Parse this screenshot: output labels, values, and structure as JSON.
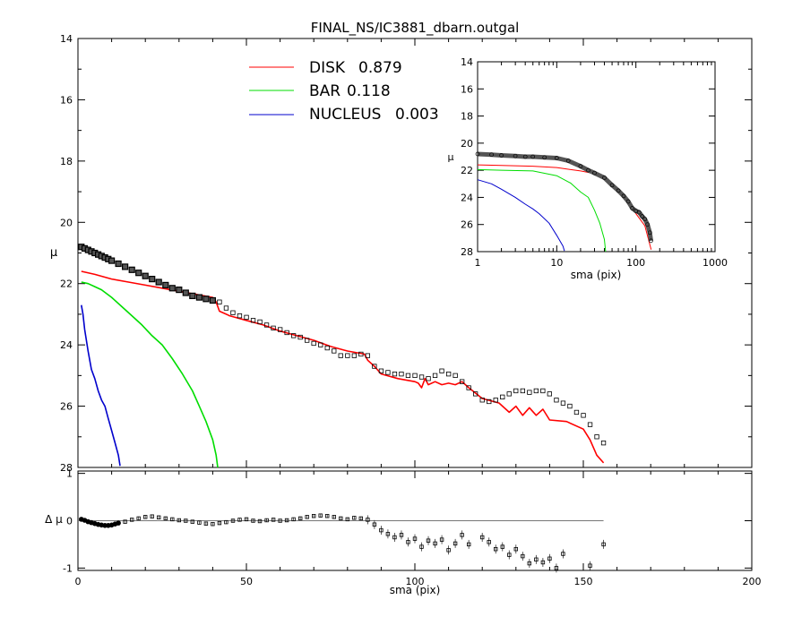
{
  "title": "FINAL_NS/IC3881_dbarn.outgal",
  "colors": {
    "disk": "#ff0000",
    "bar": "#00dd00",
    "nucleus": "#0000cc",
    "data": "#000000",
    "zero": "#777777"
  },
  "legend": [
    {
      "key": "disk",
      "label": "DISK",
      "value": "0.879"
    },
    {
      "key": "bar",
      "label": "BAR",
      "value": "0.118"
    },
    {
      "key": "nucleus",
      "label": "NUCLEUS",
      "value": "0.003"
    }
  ],
  "chart_data": [
    {
      "type": "line",
      "panel": "main",
      "xlim": [
        0,
        200
      ],
      "ylim": [
        28,
        14
      ],
      "ylabel": "μ",
      "y_ticks": [
        "14",
        "16",
        "18",
        "20",
        "22",
        "24",
        "26",
        "28"
      ],
      "y_tick_values": [
        14,
        16,
        18,
        20,
        22,
        24,
        26,
        28
      ],
      "observed": {
        "x": [
          1,
          2,
          3,
          4,
          5,
          6,
          7,
          8,
          9,
          10,
          12,
          14,
          16,
          18,
          20,
          22,
          24,
          26,
          28,
          30,
          32,
          34,
          36,
          38,
          40,
          42,
          44,
          46,
          48,
          50,
          52,
          54,
          56,
          58,
          60,
          62,
          64,
          66,
          68,
          70,
          72,
          74,
          76,
          78,
          80,
          82,
          84,
          86,
          88,
          90,
          92,
          94,
          96,
          98,
          100,
          102,
          104,
          106,
          108,
          110,
          112,
          114,
          116,
          118,
          120,
          122,
          124,
          126,
          128,
          130,
          132,
          134,
          136,
          138,
          140,
          142,
          144,
          146,
          148,
          150,
          152,
          154,
          156
        ],
        "y": [
          20.8,
          20.85,
          20.9,
          20.95,
          21.0,
          21.05,
          21.1,
          21.15,
          21.2,
          21.25,
          21.35,
          21.45,
          21.55,
          21.65,
          21.75,
          21.85,
          21.95,
          22.05,
          22.15,
          22.2,
          22.3,
          22.4,
          22.45,
          22.5,
          22.55,
          22.6,
          22.8,
          22.95,
          23.05,
          23.1,
          23.2,
          23.25,
          23.35,
          23.45,
          23.5,
          23.6,
          23.7,
          23.75,
          23.85,
          23.95,
          24.0,
          24.1,
          24.2,
          24.35,
          24.35,
          24.35,
          24.3,
          24.35,
          24.7,
          24.85,
          24.9,
          24.95,
          24.95,
          25.0,
          25.0,
          25.05,
          25.1,
          25.0,
          24.85,
          24.95,
          25.0,
          25.2,
          25.4,
          25.6,
          25.8,
          25.85,
          25.8,
          25.7,
          25.6,
          25.5,
          25.5,
          25.55,
          25.5,
          25.5,
          25.6,
          25.8,
          25.9,
          26.0,
          26.2,
          26.3,
          26.6,
          27.0,
          27.2
        ]
      },
      "series": [
        {
          "key": "disk",
          "x": [
            1,
            5,
            10,
            15,
            20,
            25,
            30,
            35,
            40,
            41,
            42,
            45,
            50,
            55,
            60,
            65,
            70,
            75,
            80,
            85,
            86,
            88,
            90,
            95,
            100,
            101,
            102,
            103,
            104,
            106,
            108,
            110,
            112,
            114,
            116,
            120,
            125,
            128,
            130,
            132,
            134,
            136,
            138,
            140,
            145,
            150,
            152,
            154,
            156
          ],
          "y": [
            21.6,
            21.7,
            21.85,
            21.95,
            22.05,
            22.15,
            22.25,
            22.35,
            22.45,
            22.6,
            22.9,
            23.05,
            23.2,
            23.35,
            23.55,
            23.7,
            23.85,
            24.05,
            24.2,
            24.3,
            24.5,
            24.7,
            24.95,
            25.1,
            25.2,
            25.25,
            25.4,
            25.1,
            25.3,
            25.2,
            25.3,
            25.25,
            25.3,
            25.2,
            25.4,
            25.75,
            25.9,
            26.2,
            26.0,
            26.3,
            26.05,
            26.3,
            26.1,
            26.45,
            26.5,
            26.75,
            27.1,
            27.6,
            27.85
          ]
        },
        {
          "key": "bar",
          "x": [
            1,
            3,
            5,
            7,
            10,
            13,
            16,
            19,
            22,
            25,
            28,
            31,
            34,
            36,
            38,
            40,
            41,
            41.5
          ],
          "y": [
            21.95,
            22.0,
            22.1,
            22.2,
            22.45,
            22.75,
            23.05,
            23.35,
            23.7,
            24.0,
            24.45,
            24.95,
            25.5,
            26.0,
            26.5,
            27.1,
            27.6,
            28.0
          ]
        },
        {
          "key": "nucleus",
          "x": [
            1,
            1.5,
            2,
            3,
            4,
            5,
            6,
            7,
            8,
            9,
            10,
            11,
            12,
            12.5
          ],
          "y": [
            22.7,
            23.0,
            23.5,
            24.2,
            24.8,
            25.1,
            25.5,
            25.8,
            26.0,
            26.4,
            26.8,
            27.2,
            27.6,
            27.95
          ]
        }
      ]
    },
    {
      "type": "scatter",
      "panel": "residual",
      "xlim": [
        0,
        200
      ],
      "ylim": [
        -1.05,
        1.05
      ],
      "xlabel": "sma (pix)",
      "ylabel": "Δ μ",
      "x_ticks": [
        "0",
        "50",
        "100",
        "150",
        "200"
      ],
      "x_tick_values": [
        0,
        50,
        100,
        150,
        200
      ],
      "y_ticks": [
        "1",
        "0",
        "-1"
      ],
      "y_tick_values": [
        1,
        0,
        -1
      ],
      "zero_line": {
        "x": [
          0,
          156
        ],
        "y": 0
      },
      "x": [
        1,
        2,
        3,
        4,
        5,
        6,
        7,
        8,
        9,
        10,
        11,
        12,
        14,
        16,
        18,
        20,
        22,
        24,
        26,
        28,
        30,
        32,
        34,
        36,
        38,
        40,
        42,
        44,
        46,
        48,
        50,
        52,
        54,
        56,
        58,
        60,
        62,
        64,
        66,
        68,
        70,
        72,
        74,
        76,
        78,
        80,
        82,
        84,
        86,
        88,
        90,
        92,
        94,
        96,
        98,
        100,
        102,
        104,
        106,
        108,
        110,
        112,
        114,
        116,
        120,
        122,
        124,
        126,
        128,
        130,
        132,
        134,
        136,
        138,
        140,
        142,
        144,
        152,
        156
      ],
      "y": [
        0.03,
        0.01,
        -0.02,
        -0.04,
        -0.06,
        -0.08,
        -0.09,
        -0.1,
        -0.1,
        -0.09,
        -0.07,
        -0.05,
        -0.02,
        0.02,
        0.05,
        0.08,
        0.09,
        0.07,
        0.05,
        0.03,
        0.01,
        0.0,
        -0.02,
        -0.04,
        -0.06,
        -0.07,
        -0.05,
        -0.03,
        0.0,
        0.02,
        0.03,
        0.0,
        -0.01,
        0.01,
        0.02,
        0.0,
        0.01,
        0.03,
        0.05,
        0.08,
        0.1,
        0.11,
        0.1,
        0.08,
        0.05,
        0.03,
        0.06,
        0.05,
        0.02,
        -0.08,
        -0.2,
        -0.28,
        -0.35,
        -0.3,
        -0.45,
        -0.38,
        -0.55,
        -0.42,
        -0.48,
        -0.4,
        -0.62,
        -0.48,
        -0.3,
        -0.5,
        -0.35,
        -0.45,
        -0.6,
        -0.55,
        -0.72,
        -0.6,
        -0.75,
        -0.9,
        -0.82,
        -0.88,
        -0.8,
        -1.0,
        -0.7,
        -0.95,
        -0.5
      ]
    },
    {
      "type": "line",
      "panel": "inset",
      "xscale": "log",
      "xlim": [
        1,
        1000
      ],
      "ylim": [
        28,
        14
      ],
      "xlabel": "sma (pix)",
      "ylabel": "μ",
      "x_ticks": [
        "1",
        "10",
        "100",
        "1000"
      ],
      "x_tick_values": [
        1,
        10,
        100,
        1000
      ],
      "y_ticks": [
        "14",
        "16",
        "18",
        "20",
        "22",
        "24",
        "26",
        "28"
      ],
      "y_tick_values": [
        14,
        16,
        18,
        20,
        22,
        24,
        26,
        28
      ],
      "observed": {
        "x": [
          1,
          1.5,
          2,
          3,
          4,
          5,
          7,
          10,
          14,
          20,
          25,
          30,
          40,
          50,
          60,
          70,
          80,
          90,
          100,
          110,
          120,
          130,
          140,
          150,
          155
        ],
        "y": [
          20.8,
          20.85,
          20.9,
          20.95,
          21.0,
          21.0,
          21.05,
          21.1,
          21.3,
          21.7,
          22.0,
          22.2,
          22.55,
          23.1,
          23.5,
          23.9,
          24.3,
          24.8,
          25.0,
          25.1,
          25.4,
          25.6,
          26.0,
          26.6,
          27.2
        ]
      },
      "series": [
        {
          "key": "disk",
          "x": [
            1,
            2,
            5,
            10,
            15,
            20,
            30,
            40,
            60,
            80,
            100,
            130,
            156
          ],
          "y": [
            21.6,
            21.65,
            21.7,
            21.8,
            21.95,
            22.05,
            22.25,
            22.45,
            23.5,
            24.2,
            25.2,
            26.1,
            27.85
          ]
        },
        {
          "key": "bar",
          "x": [
            1,
            2,
            5,
            10,
            15,
            20,
            25,
            30,
            35,
            40,
            41.5
          ],
          "y": [
            21.95,
            22.0,
            22.05,
            22.4,
            22.95,
            23.6,
            24.0,
            24.95,
            25.9,
            27.1,
            28.0
          ]
        },
        {
          "key": "nucleus",
          "x": [
            1,
            1.5,
            2,
            3,
            4,
            5,
            6,
            8,
            10,
            12,
            12.5
          ],
          "y": [
            22.7,
            23.0,
            23.4,
            24.0,
            24.5,
            24.85,
            25.2,
            25.9,
            26.8,
            27.6,
            27.95
          ]
        }
      ]
    }
  ]
}
